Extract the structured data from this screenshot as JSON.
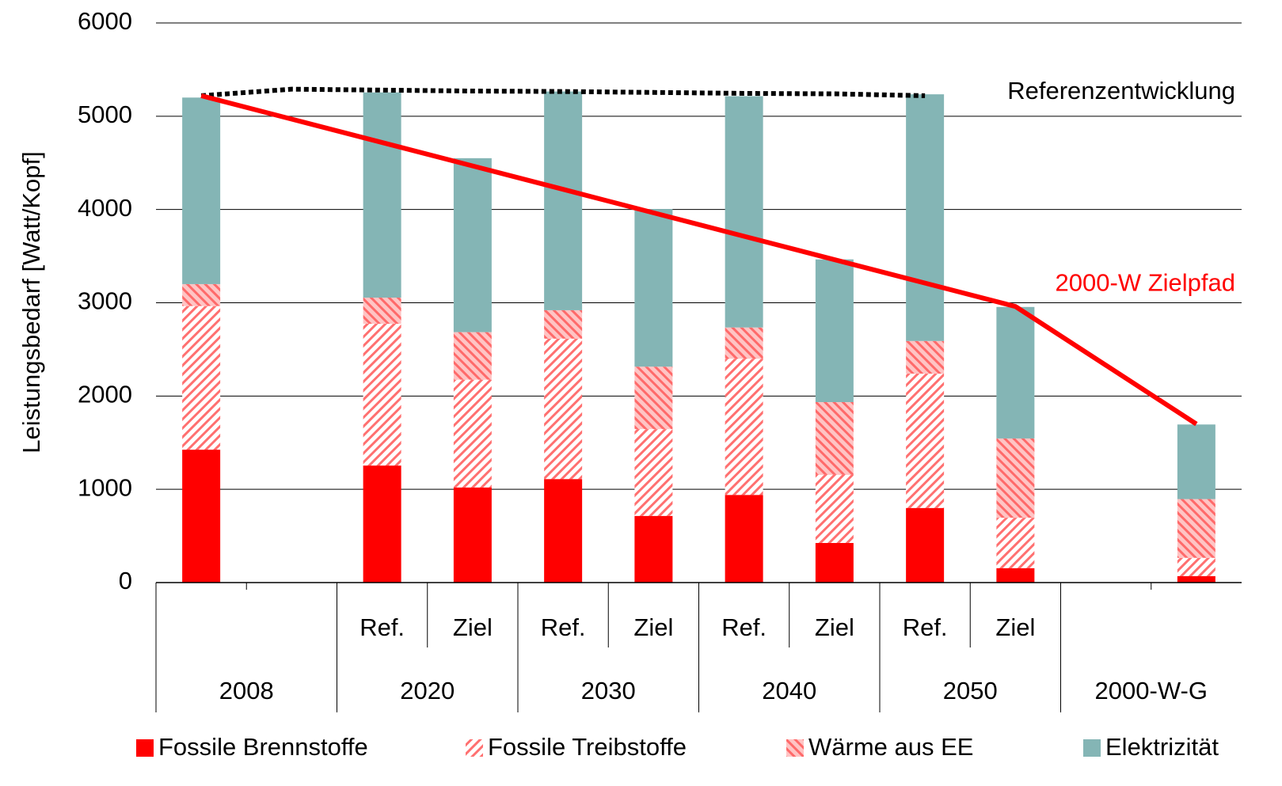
{
  "chart_data": {
    "type": "bar",
    "stacked": true,
    "ylabel": "Leistungsbedarf [Watt/Kopf]",
    "ylim": [
      0,
      6000
    ],
    "yticks": [
      0,
      1000,
      2000,
      3000,
      4000,
      5000,
      6000
    ],
    "grid": true,
    "categories": [
      null,
      null,
      "Ref.",
      "Ziel",
      "Ref.",
      "Ziel",
      "Ref.",
      "Ziel",
      "Ref.",
      "Ziel",
      null,
      null
    ],
    "groups": [
      "2008",
      "2020",
      "2030",
      "2040",
      "2050",
      "2000-W-G"
    ],
    "legend": "bottom",
    "series": [
      {
        "name": "Fossile Brennstoffe",
        "color": "#ff0000",
        "values": [
          1425,
          null,
          1255,
          1020,
          1110,
          715,
          940,
          425,
          800,
          155,
          null,
          70
        ]
      },
      {
        "name": "Fossile Treibstoffe",
        "color": "#ff7070",
        "pattern": {
          "background": "#ffffff",
          "direction": "down"
        },
        "values": [
          1540,
          null,
          1520,
          1155,
          1505,
          930,
          1460,
          730,
          1440,
          540,
          null,
          195
        ]
      },
      {
        "name": "Wärme aus EE",
        "color": "#ff6a6a",
        "pattern": {
          "background": "#ffc4c4",
          "direction": "up"
        },
        "values": [
          235,
          null,
          280,
          510,
          305,
          670,
          335,
          780,
          350,
          850,
          null,
          630
        ]
      },
      {
        "name": "Elektrizität",
        "color": "#84b5b5",
        "values": [
          2000,
          null,
          2200,
          1865,
          2345,
          1690,
          2480,
          1530,
          2645,
          1410,
          null,
          800
        ]
      }
    ],
    "lines": [
      {
        "name": "Referenzentwicklung",
        "color": "#000000",
        "style": "dotted",
        "values": [
          5220,
          5290,
          5280,
          5270,
          5265,
          5255,
          5245,
          5240,
          5220,
          null,
          null,
          null
        ]
      },
      {
        "name": "2000-W Zielpfad",
        "color": "#ff0000",
        "style": "solid",
        "values": [
          5220,
          4969,
          4718,
          4467,
          4216,
          3964,
          3713,
          3462,
          3211,
          2960,
          2330,
          1700
        ]
      }
    ]
  }
}
